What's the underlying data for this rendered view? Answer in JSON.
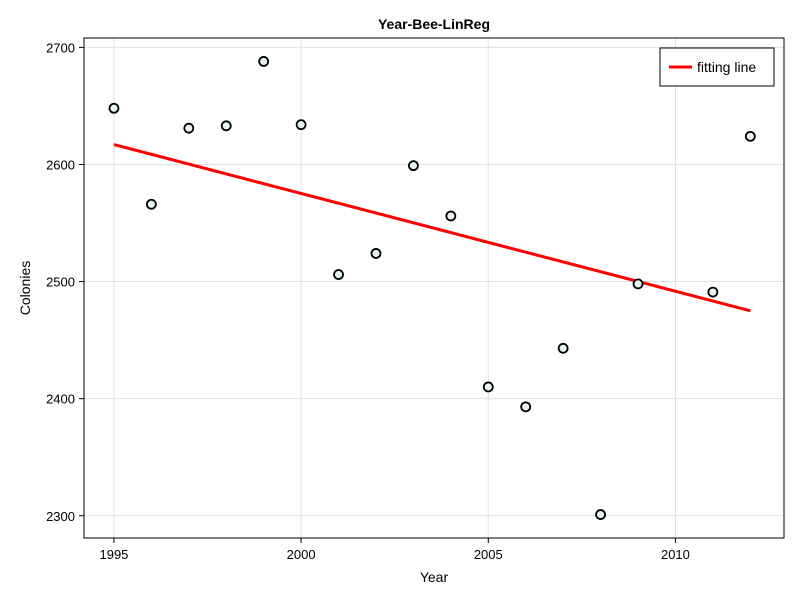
{
  "chart_data": {
    "type": "scatter",
    "title": "Year-Bee-LinReg",
    "xlabel": "Year",
    "ylabel": "Colonies",
    "xlim": [
      1994.2,
      2012.9
    ],
    "ylim": [
      2281,
      2708
    ],
    "xticks": [
      1995,
      2000,
      2005,
      2010
    ],
    "yticks": [
      2300,
      2400,
      2500,
      2600,
      2700
    ],
    "grid": true,
    "legend_position": "top-right",
    "series": [
      {
        "type": "scatter",
        "x": [
          1995,
          1996,
          1997,
          1998,
          1999,
          2000,
          2001,
          2002,
          2003,
          2004,
          2005,
          2006,
          2007,
          2008,
          2009,
          2011,
          2012
        ],
        "y": [
          2648,
          2566,
          2631,
          2633,
          2688,
          2634,
          2506,
          2524,
          2599,
          2556,
          2410,
          2393,
          2443,
          2301,
          2498,
          2491,
          2624
        ],
        "marker_fill": "#e8f5e9",
        "marker_edge": "#000000"
      },
      {
        "type": "line",
        "name": "fitting line",
        "x": [
          1995,
          2012
        ],
        "y": [
          2617,
          2475
        ],
        "color": "#ff0000"
      }
    ]
  }
}
